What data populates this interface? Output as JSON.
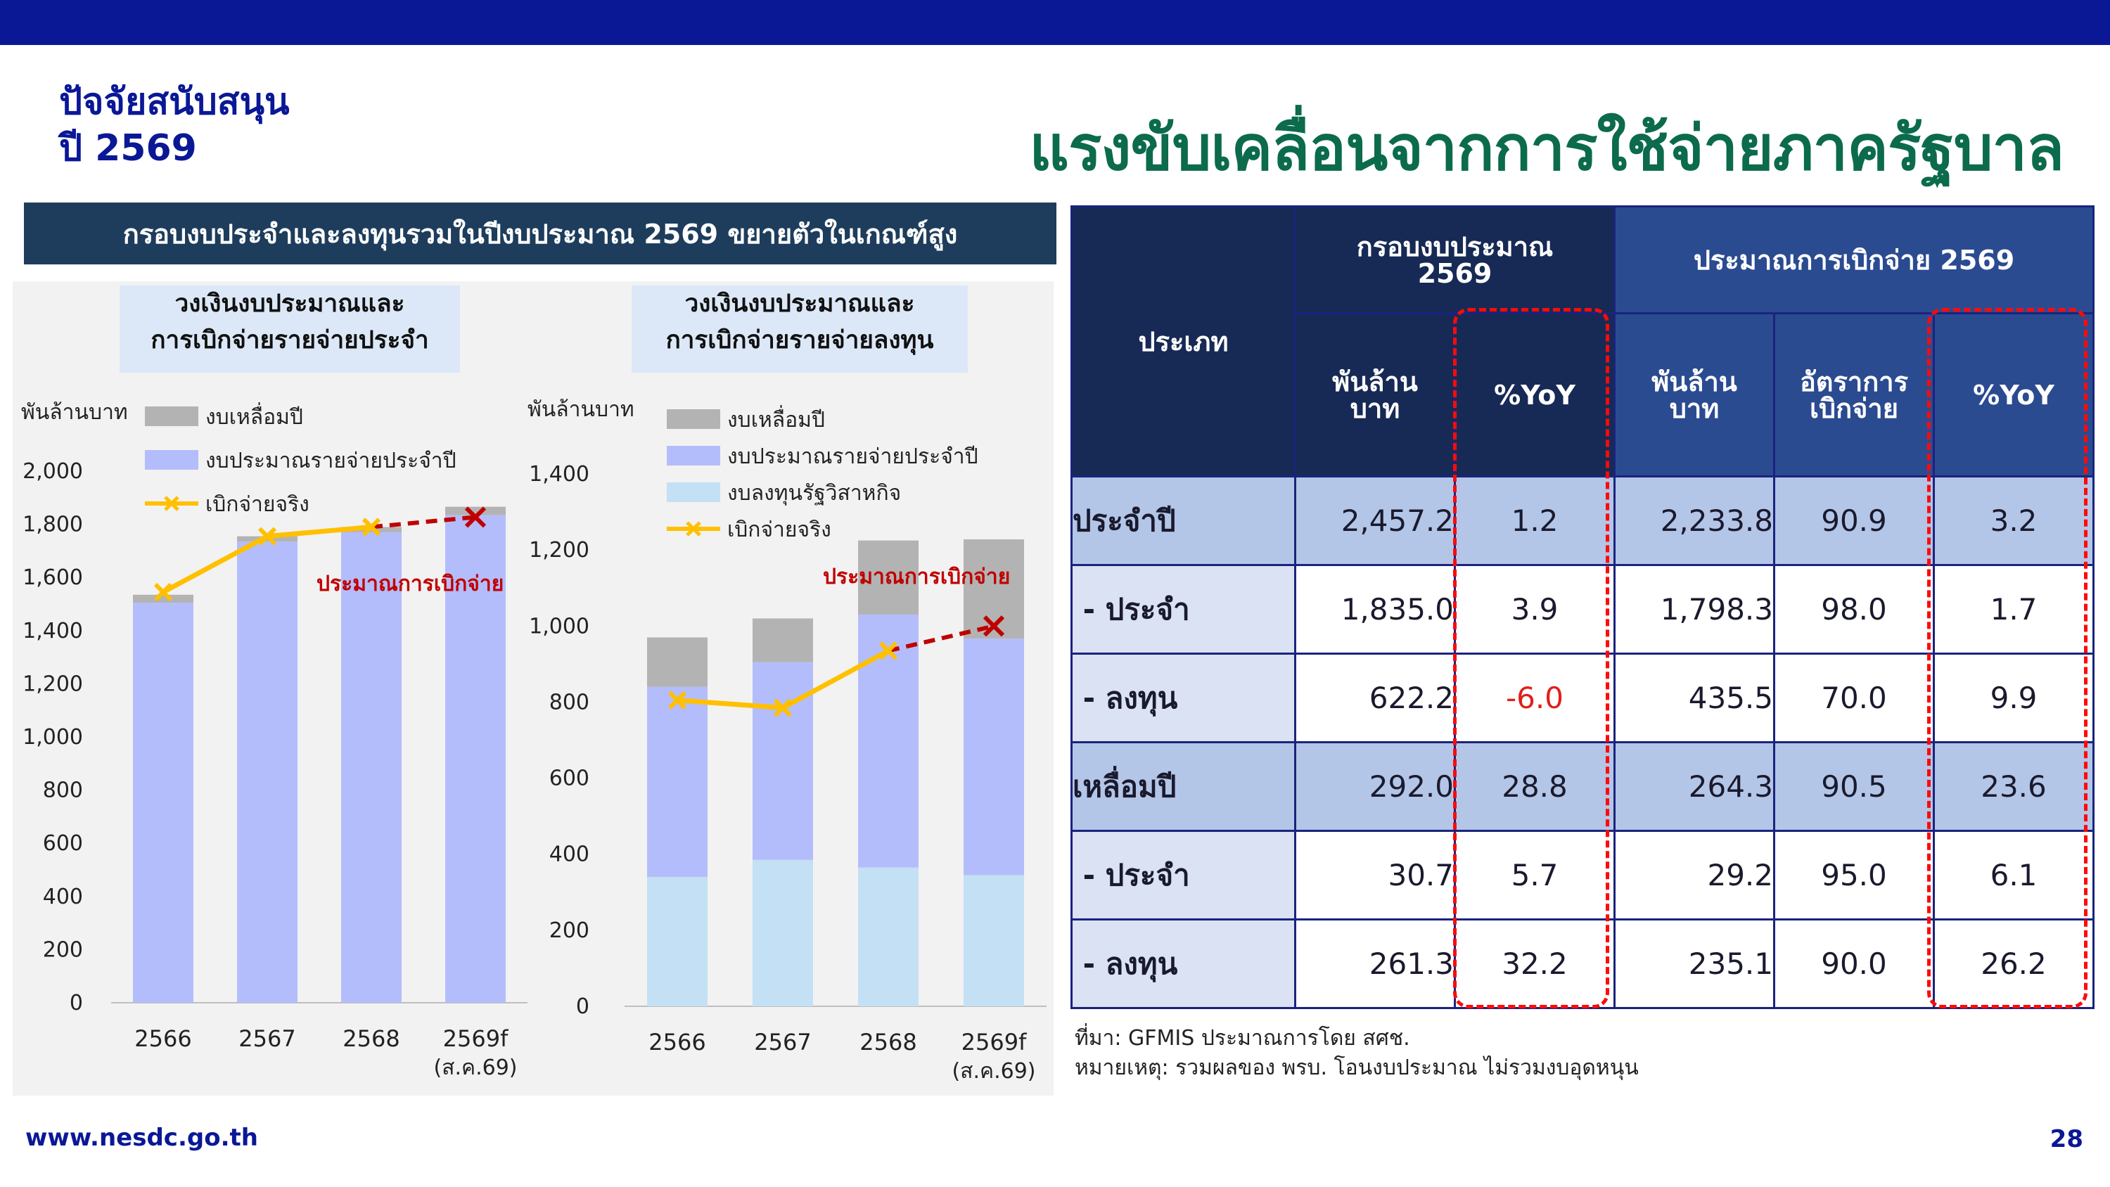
{
  "header": {
    "subtitle_line1": "ปัจจัยสนับสนุน",
    "subtitle_line2": "ปี 2569",
    "title": "แรงขับเคลื่อนจากการใช้จ่ายภาครัฐบาล",
    "banner": "กรอบงบประจำและลงทุนรวมในปีงบประมาณ 2569 ขยายตัวในเกณฑ์สูง"
  },
  "colors": {
    "leftover": "#b3b3b3",
    "current_budget": "#b4bdfb",
    "soe_investment": "#c4e0f4",
    "actual": "#ffc000",
    "estimate": "#c00000",
    "table_header_dark": "#172a55",
    "table_header_mid": "#2b4b91",
    "table_row_main": "#b4c6e7",
    "highlight_box": "#ff0a0a"
  },
  "chart_data": [
    {
      "type": "bar",
      "stacked": true,
      "title": "วงเงินงบประมาณและ\nการเบิกจ่ายรายจ่ายประจำ",
      "ylabel": "พันล้านบาท",
      "ylim": [
        0,
        2000
      ],
      "yticks": [
        0,
        200,
        400,
        600,
        800,
        1000,
        1200,
        1400,
        1600,
        1800,
        2000
      ],
      "ytick_labels": [
        "0",
        "200",
        "400",
        "600",
        "800",
        "1,000",
        "1,200",
        "1,400",
        "1,600",
        "1,800",
        "2,000"
      ],
      "categories": [
        "2566",
        "2567",
        "2568",
        "2569f"
      ],
      "category_sublabels": [
        "",
        "",
        "",
        "(ส.ค.69)"
      ],
      "series": [
        {
          "name": "งบประมาณรายจ่ายประจำปี",
          "kind": "bar",
          "values": [
            1505,
            1735,
            1770,
            1835
          ]
        },
        {
          "name": "งบเหลื่อมปี",
          "kind": "bar",
          "values": [
            30,
            20,
            20,
            31
          ]
        },
        {
          "name": "เบิกจ่ายจริง",
          "kind": "line",
          "values": [
            1545,
            1755,
            1790,
            1827
          ]
        }
      ],
      "estimate_segment": {
        "from": 2,
        "to": 3,
        "label": "ประมาณการเบิกจ่าย"
      },
      "legend": [
        "งบเหลื่อมปี",
        "งบประมาณรายจ่ายประจำปี",
        "เบิกจ่ายจริง"
      ],
      "legend_position": "top",
      "grid": false
    },
    {
      "type": "bar",
      "stacked": true,
      "title": "วงเงินงบประมาณและ\nการเบิกจ่ายรายจ่ายลงทุน",
      "ylabel": "พันล้านบาท",
      "ylim": [
        0,
        1400
      ],
      "yticks": [
        0,
        200,
        400,
        600,
        800,
        1000,
        1200,
        1400
      ],
      "ytick_labels": [
        "0",
        "200",
        "400",
        "600",
        "800",
        "1,000",
        "1,200",
        "1,400"
      ],
      "categories": [
        "2566",
        "2567",
        "2568",
        "2569f"
      ],
      "category_sublabels": [
        "",
        "",
        "",
        "(ส.ค.69)"
      ],
      "series": [
        {
          "name": "งบลงทุนรัฐวิสาหกิจ",
          "kind": "bar",
          "values": [
            340,
            385,
            365,
            345
          ]
        },
        {
          "name": "งบประมาณรายจ่ายประจำปี",
          "kind": "bar",
          "values": [
            500,
            520,
            665,
            622
          ]
        },
        {
          "name": "งบเหลื่อมปี",
          "kind": "bar",
          "values": [
            130,
            115,
            195,
            261
          ]
        },
        {
          "name": "เบิกจ่ายจริง",
          "kind": "line",
          "values": [
            805,
            785,
            935,
            1000
          ]
        }
      ],
      "estimate_segment": {
        "from": 2,
        "to": 3,
        "label": "ประมาณการเบิกจ่าย"
      },
      "legend": [
        "งบเหลื่อมปี",
        "งบประมาณรายจ่ายประจำปี",
        "งบลงทุนรัฐวิสาหกิจ",
        "เบิกจ่ายจริง"
      ],
      "legend_position": "top",
      "grid": false
    }
  ],
  "table": {
    "h_category": "ประเภท",
    "h_budget": "กรอบงบประมาณ\n2569",
    "h_disburse": "ประมาณการเบิกจ่าย 2569",
    "h_bn1": "พันล้าน\nบาท",
    "h_yoy1": "%YoY",
    "h_bn2": "พันล้าน\nบาท",
    "h_rate": "อัตราการ\nเบิกจ่าย",
    "h_yoy2": "%YoY",
    "rows": [
      {
        "label": "ประจำปี",
        "budget": "2,457.2",
        "yoy": "1.2",
        "disb": "2,233.8",
        "rate": "90.9",
        "yoy2": "3.2"
      },
      {
        "label": " - ประจำ",
        "budget": "1,835.0",
        "yoy": "3.9",
        "disb": "1,798.3",
        "rate": "98.0",
        "yoy2": "1.7"
      },
      {
        "label": " - ลงทุน",
        "budget": "622.2",
        "yoy": "-6.0",
        "disb": "435.5",
        "rate": "70.0",
        "yoy2": "9.9"
      },
      {
        "label": "เหลื่อมปี",
        "budget": "292.0",
        "yoy": "28.8",
        "disb": "264.3",
        "rate": "90.5",
        "yoy2": "23.6"
      },
      {
        "label": " - ประจำ",
        "budget": "30.7",
        "yoy": "5.7",
        "disb": "29.2",
        "rate": "95.0",
        "yoy2": "6.1"
      },
      {
        "label": " - ลงทุน",
        "budget": "261.3",
        "yoy": "32.2",
        "disb": "235.1",
        "rate": "90.0",
        "yoy2": "26.2"
      }
    ]
  },
  "notes": {
    "source": "ที่มา: GFMIS ประมาณการโดย สศช.",
    "remark": "หมายเหตุ: รวมผลของ พรบ. โอนงบประมาณ ไม่รวมงบอุดหนุน"
  },
  "footer": {
    "website": "www.nesdc.go.th",
    "page": "28"
  }
}
